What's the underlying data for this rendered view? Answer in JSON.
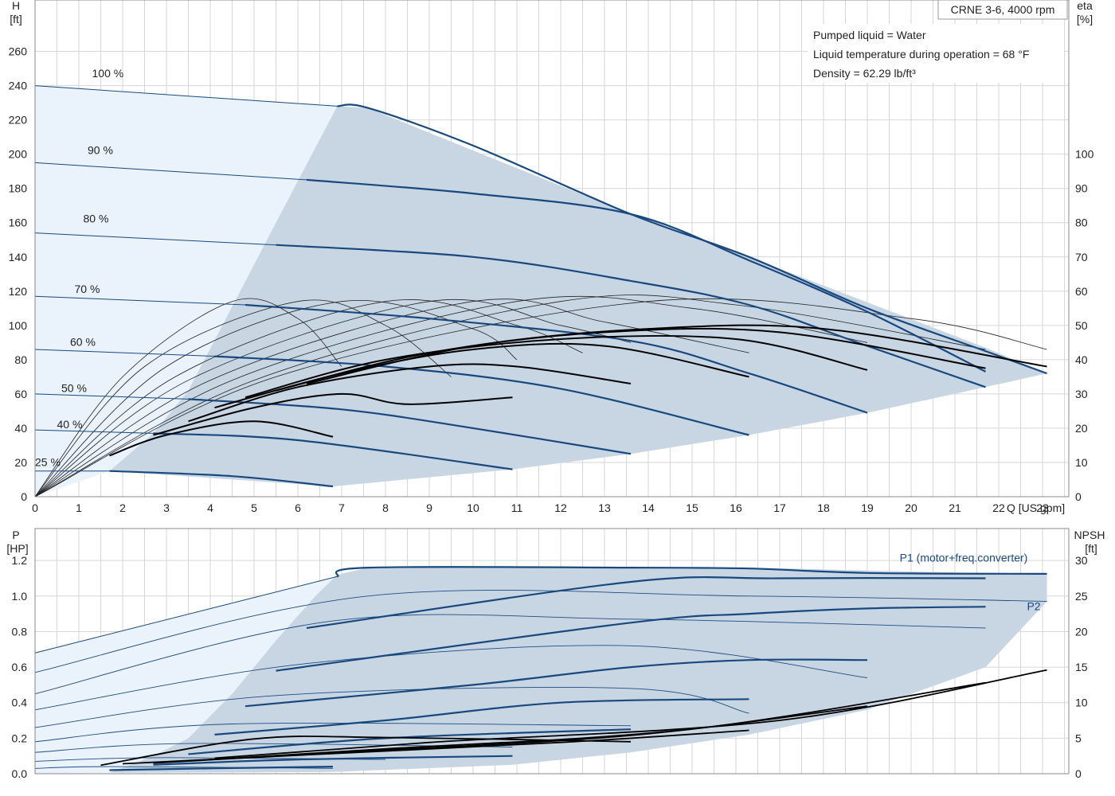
{
  "chart_data": [
    {
      "type": "line",
      "title": "CRNE 3-6, 4000 rpm",
      "notes": [
        "Pumped liquid = Water",
        "Liquid temperature during operation = 68 °F",
        "Density = 62.29 lb/ft³"
      ],
      "x_ticks": [
        "0",
        "1",
        "2",
        "3",
        "4",
        "5",
        "6",
        "7",
        "8",
        "9",
        "10",
        "11",
        "12",
        "13",
        "14",
        "15",
        "16",
        "17",
        "18",
        "19",
        "20",
        "21",
        "22",
        "23"
      ],
      "xlabel": "Q [US gpm]",
      "ylabel_left": [
        "H",
        "[ft]"
      ],
      "ylabel_right": [
        "eta",
        "[%]"
      ],
      "y_left_ticks": [
        "0",
        "20",
        "40",
        "60",
        "80",
        "100",
        "120",
        "140",
        "160",
        "180",
        "200",
        "220",
        "240",
        "260"
      ],
      "y_right_ticks": [
        "0",
        "10",
        "20",
        "30",
        "40",
        "50",
        "60",
        "70",
        "80",
        "90",
        "100"
      ],
      "xlim": [
        0,
        23.6
      ],
      "ylim_left": [
        0,
        290
      ],
      "ylim_right": [
        0,
        145
      ],
      "grid": true,
      "speed_labels": [
        {
          "text": "100 %",
          "x": 1.3,
          "y": 245
        },
        {
          "text": "90 %",
          "x": 1.2,
          "y": 200
        },
        {
          "text": "80 %",
          "x": 1.1,
          "y": 160
        },
        {
          "text": "70 %",
          "x": 0.9,
          "y": 119
        },
        {
          "text": "60 %",
          "x": 0.8,
          "y": 88
        },
        {
          "text": "50 %",
          "x": 0.6,
          "y": 61
        },
        {
          "text": "40 %",
          "x": 0.5,
          "y": 40
        },
        {
          "text": "25 %",
          "x": 0.0,
          "y": 18
        }
      ],
      "operating_area": [
        [
          1.7,
          15
        ],
        [
          6.8,
          6
        ],
        [
          10.9,
          16
        ],
        [
          13.6,
          25
        ],
        [
          16.3,
          36
        ],
        [
          19,
          49
        ],
        [
          21.7,
          64
        ],
        [
          23.1,
          72
        ],
        [
          21.7,
          87
        ],
        [
          16.3,
          140
        ],
        [
          13.6,
          165
        ],
        [
          7.6,
          227
        ],
        [
          6.9,
          228
        ],
        [
          5.5,
          160
        ],
        [
          3.5,
          62
        ],
        [
          2.7,
          37
        ]
      ],
      "head_series": [
        {
          "pct": 100,
          "points": [
            [
              0,
              240
            ],
            [
              6.9,
              228
            ],
            [
              7.6,
              227
            ],
            [
              10,
              205
            ],
            [
              13.6,
              165
            ],
            [
              16.3,
              140
            ],
            [
              19,
              110
            ],
            [
              21.7,
              85
            ],
            [
              23.1,
              72
            ]
          ]
        },
        {
          "pct": 90,
          "points": [
            [
              0,
              195
            ],
            [
              6.2,
              185
            ],
            [
              10,
              177
            ],
            [
              13.6,
              165
            ],
            [
              16.3,
              138
            ],
            [
              19,
              108
            ],
            [
              21.7,
              73
            ]
          ]
        },
        {
          "pct": 80,
          "points": [
            [
              0,
              154
            ],
            [
              5.5,
              147
            ],
            [
              10,
              140
            ],
            [
              13.6,
              126
            ],
            [
              16.3,
              112
            ],
            [
              19,
              88
            ],
            [
              21.7,
              64
            ]
          ]
        },
        {
          "pct": 70,
          "points": [
            [
              0,
              117
            ],
            [
              4.8,
              112
            ],
            [
              9,
              104
            ],
            [
              13.6,
              91
            ],
            [
              16.3,
              72
            ],
            [
              19,
              49
            ]
          ]
        },
        {
          "pct": 60,
          "points": [
            [
              0,
              86
            ],
            [
              4.1,
              82
            ],
            [
              8,
              76
            ],
            [
              12,
              63
            ],
            [
              16.3,
              36
            ]
          ]
        },
        {
          "pct": 50,
          "points": [
            [
              0,
              60
            ],
            [
              3.5,
              57
            ],
            [
              7,
              51
            ],
            [
              10,
              40
            ],
            [
              13.6,
              25
            ]
          ]
        },
        {
          "pct": 40,
          "points": [
            [
              0,
              39
            ],
            [
              2.7,
              37
            ],
            [
              6,
              33
            ],
            [
              10.9,
              16
            ]
          ]
        },
        {
          "pct": 25,
          "points": [
            [
              0,
              15
            ],
            [
              1.7,
              15
            ],
            [
              4.5,
              12
            ],
            [
              6.8,
              6
            ]
          ]
        }
      ],
      "eta_thin_series": [
        [
          [
            0,
            0
          ],
          [
            2,
            35
          ],
          [
            4.5,
            57
          ],
          [
            6,
            52
          ],
          [
            7,
            38
          ]
        ],
        [
          [
            0,
            0
          ],
          [
            2.5,
            38
          ],
          [
            6,
            57
          ],
          [
            8,
            50
          ],
          [
            9.5,
            35
          ]
        ],
        [
          [
            0,
            0
          ],
          [
            3,
            38
          ],
          [
            7,
            57
          ],
          [
            10,
            49
          ],
          [
            11,
            40
          ]
        ],
        [
          [
            0,
            0
          ],
          [
            3.2,
            35
          ],
          [
            8,
            57
          ],
          [
            11,
            50
          ],
          [
            12.5,
            42
          ]
        ],
        [
          [
            0,
            0
          ],
          [
            3.5,
            34
          ],
          [
            9,
            57
          ],
          [
            12,
            50
          ],
          [
            13.6,
            45
          ]
        ],
        [
          [
            0,
            0
          ],
          [
            4,
            34
          ],
          [
            10,
            57
          ],
          [
            13,
            51
          ],
          [
            16.3,
            42
          ]
        ],
        [
          [
            0,
            0
          ],
          [
            4.5,
            34
          ],
          [
            11,
            57
          ],
          [
            15,
            55
          ],
          [
            19,
            45
          ]
        ],
        [
          [
            0,
            0
          ],
          [
            5,
            34
          ],
          [
            12,
            57
          ],
          [
            16,
            56
          ],
          [
            21.7,
            43
          ]
        ],
        [
          [
            0,
            0
          ],
          [
            5.5,
            35
          ],
          [
            14,
            57
          ],
          [
            20,
            52
          ],
          [
            23.1,
            43
          ]
        ]
      ],
      "eta_thick_series": [
        [
          [
            1.7,
            12
          ],
          [
            3,
            18
          ],
          [
            5,
            22
          ],
          [
            6.8,
            17.5
          ]
        ],
        [
          [
            2.7,
            18
          ],
          [
            5,
            26
          ],
          [
            7,
            30
          ],
          [
            8.5,
            27
          ],
          [
            10.9,
            29
          ]
        ],
        [
          [
            3.5,
            22
          ],
          [
            6,
            32
          ],
          [
            9,
            38
          ],
          [
            11,
            38
          ],
          [
            13.6,
            33
          ]
        ],
        [
          [
            4.1,
            26
          ],
          [
            7,
            36
          ],
          [
            10,
            43
          ],
          [
            13,
            44
          ],
          [
            16.3,
            35
          ]
        ],
        [
          [
            4.8,
            29
          ],
          [
            8,
            40
          ],
          [
            12,
            46
          ],
          [
            16,
            46
          ],
          [
            19,
            37
          ]
        ],
        [
          [
            5.5,
            31
          ],
          [
            9,
            42
          ],
          [
            13,
            48
          ],
          [
            17,
            48
          ],
          [
            21.7,
            37.5
          ]
        ],
        [
          [
            6.2,
            33
          ],
          [
            10,
            44
          ],
          [
            14,
            49
          ],
          [
            18,
            49
          ],
          [
            23.1,
            38
          ]
        ]
      ]
    },
    {
      "type": "line",
      "x_ticks": [
        "0",
        "1",
        "2",
        "3",
        "4",
        "5",
        "6",
        "7",
        "8",
        "9",
        "10",
        "11",
        "12",
        "13",
        "14",
        "15",
        "16",
        "17",
        "18",
        "19",
        "20",
        "21",
        "22",
        "23"
      ],
      "ylabel_left": [
        "P",
        "[HP]"
      ],
      "ylabel_right": [
        "NPSH",
        "[ft]"
      ],
      "y_left_ticks": [
        "0.0",
        "0.2",
        "0.4",
        "0.6",
        "0.8",
        "1.0",
        "1.2"
      ],
      "y_right_ticks": [
        "0",
        "5",
        "10",
        "15",
        "20",
        "25",
        "30"
      ],
      "xlim": [
        0,
        23.6
      ],
      "ylim_left": [
        0,
        1.38
      ],
      "ylim_right": [
        0,
        34.5
      ],
      "grid": true,
      "series_labels": [
        {
          "text": "P1 (motor+freq.converter)",
          "x": 21.2,
          "y": 1.195
        },
        {
          "text": "P2",
          "x": 22.8,
          "y": 0.92
        }
      ],
      "operating_area": [
        [
          1.7,
          0.005
        ],
        [
          6.8,
          0.01
        ],
        [
          10.9,
          0.05
        ],
        [
          13.6,
          0.12
        ],
        [
          16.3,
          0.22
        ],
        [
          19,
          0.36
        ],
        [
          21.7,
          0.6
        ],
        [
          23.1,
          0.97
        ],
        [
          23.1,
          1.12
        ],
        [
          16.3,
          1.16
        ],
        [
          13.6,
          1.16
        ],
        [
          7.6,
          1.16
        ],
        [
          6.9,
          1.12
        ],
        [
          6.4,
          1.0
        ],
        [
          5.5,
          0.75
        ],
        [
          4.5,
          0.45
        ],
        [
          3.5,
          0.2
        ],
        [
          2.7,
          0.1
        ]
      ],
      "p1_series": [
        [
          [
            0,
            0.68
          ],
          [
            6.9,
            1.11
          ],
          [
            7.6,
            1.16
          ],
          [
            13.6,
            1.16
          ],
          [
            16.3,
            1.155
          ],
          [
            19,
            1.13
          ],
          [
            23.1,
            1.125
          ]
        ],
        [
          [
            6.2,
            0.82
          ],
          [
            13.6,
            1.08
          ],
          [
            17,
            1.1
          ],
          [
            21.7,
            1.1
          ]
        ],
        [
          [
            5.5,
            0.58
          ],
          [
            13.6,
            0.85
          ],
          [
            16.3,
            0.9
          ],
          [
            19,
            0.93
          ],
          [
            21.7,
            0.94
          ]
        ],
        [
          [
            4.8,
            0.38
          ],
          [
            10,
            0.5
          ],
          [
            13.6,
            0.6
          ],
          [
            16.3,
            0.64
          ],
          [
            19,
            0.64
          ]
        ],
        [
          [
            4.1,
            0.22
          ],
          [
            8,
            0.3
          ],
          [
            12,
            0.4
          ],
          [
            16.3,
            0.42
          ]
        ],
        [
          [
            3.5,
            0.11
          ],
          [
            8,
            0.2
          ],
          [
            13.6,
            0.25
          ]
        ],
        [
          [
            2.7,
            0.05
          ],
          [
            6,
            0.08
          ],
          [
            10.9,
            0.1
          ]
        ],
        [
          [
            1.7,
            0.02
          ],
          [
            4,
            0.03
          ],
          [
            6.8,
            0.04
          ]
        ]
      ],
      "p2_series": [
        [
          [
            0,
            0.57
          ],
          [
            7.6,
            1.0
          ],
          [
            16.3,
            1.0
          ],
          [
            23.1,
            0.97
          ]
        ],
        [
          [
            0,
            0.45
          ],
          [
            6.8,
            0.86
          ],
          [
            13.6,
            0.87
          ],
          [
            21.7,
            0.82
          ]
        ],
        [
          [
            0,
            0.36
          ],
          [
            6.2,
            0.62
          ],
          [
            13.6,
            0.72
          ],
          [
            19,
            0.54
          ]
        ],
        [
          [
            0,
            0.26
          ],
          [
            5.5,
            0.44
          ],
          [
            13.6,
            0.48
          ],
          [
            16.3,
            0.34
          ]
        ],
        [
          [
            0,
            0.18
          ],
          [
            4.5,
            0.28
          ],
          [
            13.6,
            0.27
          ]
        ],
        [
          [
            0,
            0.12
          ],
          [
            3.5,
            0.17
          ],
          [
            10.9,
            0.15
          ]
        ],
        [
          [
            0,
            0.07
          ],
          [
            2.7,
            0.09
          ],
          [
            8,
            0.08
          ]
        ],
        [
          [
            0,
            0.03
          ],
          [
            1.7,
            0.04
          ],
          [
            6.8,
            0.03
          ]
        ]
      ],
      "npsh_series": [
        [
          [
            2,
            1.4
          ],
          [
            6,
            2.6
          ],
          [
            12,
            4.4
          ],
          [
            16.3,
            6.1
          ]
        ],
        [
          [
            2.7,
            1.5
          ],
          [
            7,
            3
          ],
          [
            13.6,
            5.4
          ],
          [
            19,
            9.5
          ]
        ],
        [
          [
            3.5,
            1.8
          ],
          [
            8,
            3.5
          ],
          [
            15,
            6.3
          ],
          [
            21.7,
            12.8
          ]
        ],
        [
          [
            4.1,
            2.2
          ],
          [
            9,
            4.4
          ],
          [
            17,
            7.5
          ],
          [
            23.1,
            14.6
          ]
        ],
        [
          [
            1.5,
            1.2
          ],
          [
            5,
            4.9
          ],
          [
            8,
            5.1
          ],
          [
            13.6,
            4.5
          ]
        ]
      ]
    }
  ],
  "colors": {
    "area_dark": "#c8d6e4",
    "area_light": "#eaf2fb",
    "blue_line": "#18497e",
    "black_line": "#000000",
    "grid": "#d6d6d6"
  }
}
